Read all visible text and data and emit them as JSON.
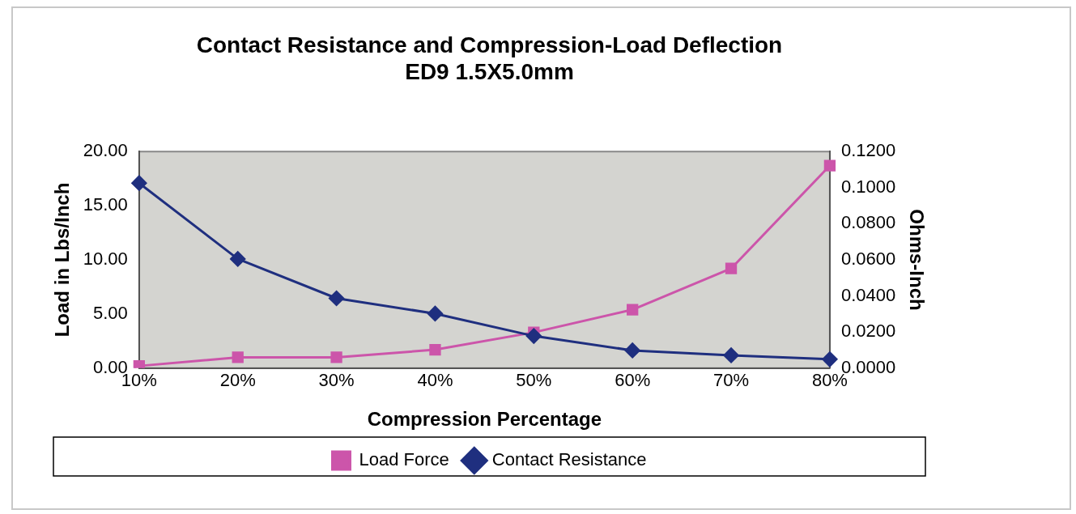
{
  "chart_data": {
    "type": "line",
    "title": [
      "Contact Resistance and Compression-Load Deflection",
      "ED9 1.5X5.0mm"
    ],
    "categories": [
      "10%",
      "20%",
      "30%",
      "40%",
      "50%",
      "60%",
      "70%",
      "80%"
    ],
    "xlabel": "Compression Percentage",
    "ylabel": "Load in Lbs/Inch",
    "y2label": "Ohms-Inch",
    "series": [
      {
        "name": "Load Force",
        "color": "#cc55aa",
        "marker": "square",
        "values": [
          0.2,
          1.0,
          1.0,
          1.7,
          3.3,
          5.4,
          9.2,
          18.7
        ]
      },
      {
        "name": "Contact Resistance",
        "color": "#1f2f7f",
        "marker": "diamond",
        "axis": "y2",
        "values": [
          0.1025,
          0.0605,
          0.0387,
          0.0302,
          0.0178,
          0.0098,
          0.0071,
          0.0049
        ]
      }
    ],
    "ylim": [
      0,
      20
    ],
    "yticks": [
      {
        "value": 0,
        "label": "0.00"
      },
      {
        "value": 5,
        "label": "5.00"
      },
      {
        "value": 10,
        "label": "10.00"
      },
      {
        "value": 15,
        "label": "15.00"
      },
      {
        "value": 20,
        "label": "20.00"
      }
    ],
    "y2lim": [
      0,
      0.12
    ],
    "y2ticks": [
      {
        "value": 0,
        "label": "0.0000"
      },
      {
        "value": 0.02,
        "label": "0.0200"
      },
      {
        "value": 0.04,
        "label": "0.0400"
      },
      {
        "value": 0.06,
        "label": "0.0600"
      },
      {
        "value": 0.08,
        "label": "0.0800"
      },
      {
        "value": 0.1,
        "label": "0.1000"
      },
      {
        "value": 0.12,
        "label": "0.1200"
      }
    ],
    "grid": false,
    "legend": "bottom",
    "line_style": "solid"
  }
}
